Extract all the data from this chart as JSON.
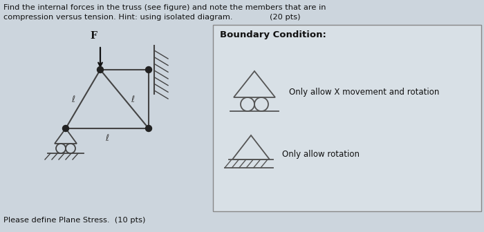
{
  "bg_color": "#ccd5dd",
  "box_bg": "#d8e0e6",
  "text_color": "#111111",
  "boundary_title": "Boundary Condition:",
  "bc_text1": "Only allow X movement and rotation",
  "bc_text2": "Only allow rotation",
  "bottom_text": "Please define Plane Stress.  (10 pts)"
}
